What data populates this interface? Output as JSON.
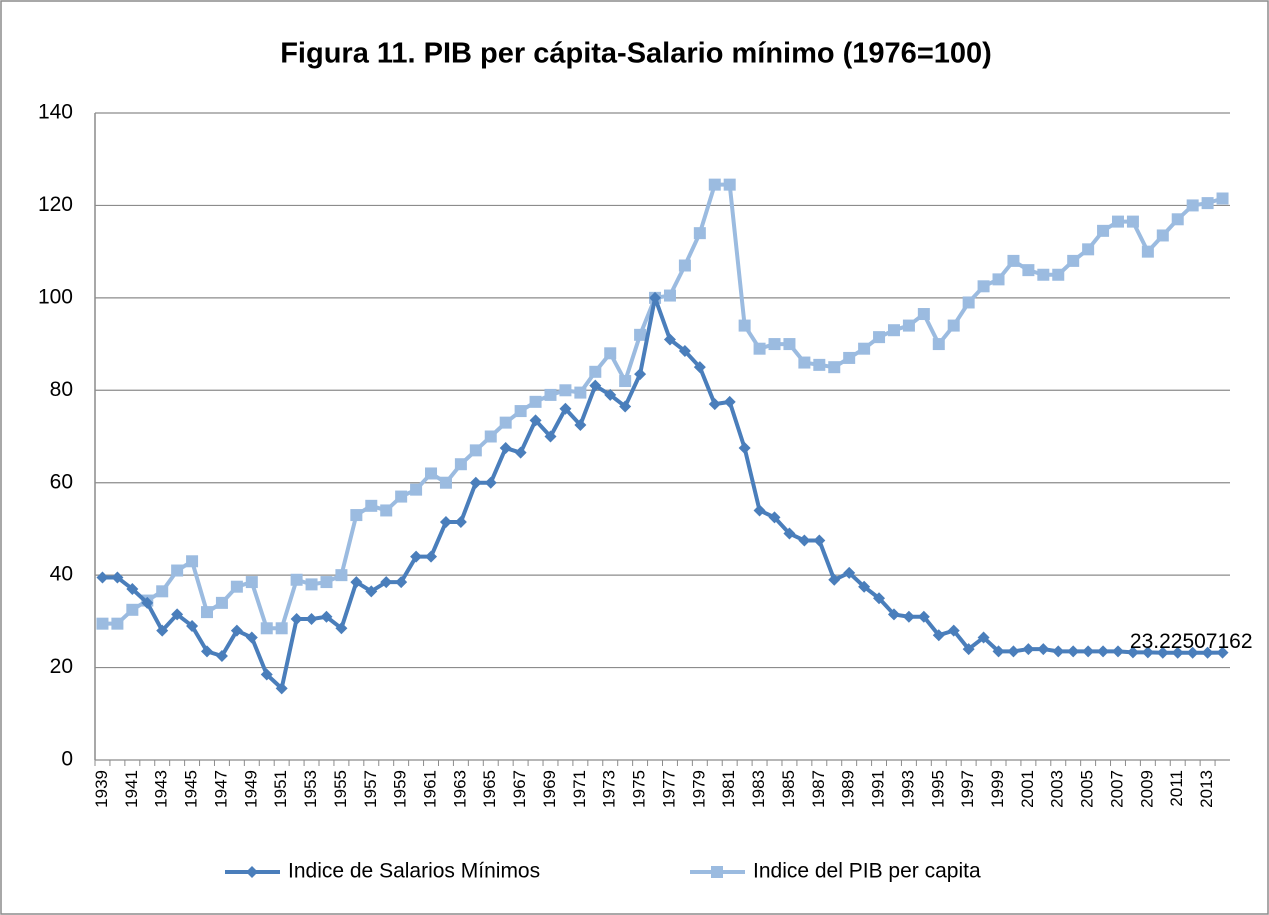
{
  "chart_data": {
    "type": "line",
    "title": "Figura 11. PIB per cápita-Salario mínimo (1976=100)",
    "categories": [
      "1939",
      null,
      "1941",
      null,
      "1943",
      null,
      "1945",
      null,
      "1947",
      null,
      "1949",
      null,
      "1951",
      null,
      "1953",
      null,
      "1955",
      null,
      "1957",
      null,
      "1959",
      null,
      "1961",
      null,
      "1963",
      null,
      "1965",
      null,
      "1967",
      null,
      "1969",
      null,
      "1971",
      null,
      "1973",
      null,
      "1975",
      null,
      "1977",
      null,
      "1979",
      null,
      "1981",
      null,
      "1983",
      null,
      "1985",
      null,
      "1987",
      null,
      "1989",
      null,
      "1991",
      null,
      "1993",
      null,
      "1995",
      null,
      "1997",
      null,
      "1999",
      null,
      "2001",
      null,
      "2003",
      null,
      "2005",
      null,
      "2007",
      null,
      "2009",
      null,
      "2011",
      null,
      "2013",
      null
    ],
    "series": [
      {
        "name": "Indice de Salarios Mínimos",
        "color": "#4a7ebb",
        "marker": "diamond",
        "values": [
          39.5,
          39.5,
          37,
          34,
          28,
          31.5,
          29,
          23.5,
          22.5,
          28,
          26.5,
          18.5,
          15.5,
          30.5,
          30.5,
          31,
          28.5,
          38.5,
          36.5,
          38.5,
          38.5,
          44,
          44,
          51.5,
          51.5,
          60,
          60,
          67.5,
          66.5,
          73.5,
          70,
          76,
          72.5,
          81,
          79,
          76.5,
          83.5,
          100,
          91,
          88.5,
          85,
          77,
          77.5,
          67.5,
          54,
          52.5,
          49,
          47.5,
          47.5,
          39,
          40.5,
          37.5,
          35,
          31.5,
          31,
          31,
          27,
          28,
          24,
          26.5,
          23.5,
          23.5,
          24,
          24,
          23.5,
          23.5,
          23.5,
          23.5,
          23.5,
          23.3,
          23.3,
          23.2,
          23.2,
          23.2,
          23.2,
          23.22507162
        ]
      },
      {
        "name": "Indice del PIB per capita",
        "color": "#9bbbe0",
        "marker": "square",
        "values": [
          29.5,
          29.5,
          32.5,
          34.5,
          36.5,
          41,
          43,
          32,
          34,
          37.5,
          38.5,
          28.5,
          28.5,
          39,
          38,
          38.5,
          40,
          53,
          55,
          54,
          57,
          58.5,
          62,
          60,
          64,
          67,
          70,
          73,
          75.5,
          77.5,
          79,
          80,
          79.5,
          84,
          88,
          82,
          92,
          100,
          100.5,
          107,
          114,
          124.5,
          124.5,
          94,
          89,
          90,
          90,
          86,
          85.5,
          85,
          87,
          89,
          91.5,
          93,
          94,
          96.5,
          90,
          94,
          99,
          102.5,
          104,
          108,
          106,
          105,
          105,
          108,
          110.5,
          114.5,
          116.5,
          116.5,
          110,
          113.5,
          117,
          120,
          120.5,
          121.5
        ]
      }
    ],
    "ylim": [
      0,
      140
    ],
    "yticks": [
      0,
      20,
      40,
      60,
      80,
      100,
      120,
      140
    ],
    "grid": true,
    "legend": "bottom"
  }
}
